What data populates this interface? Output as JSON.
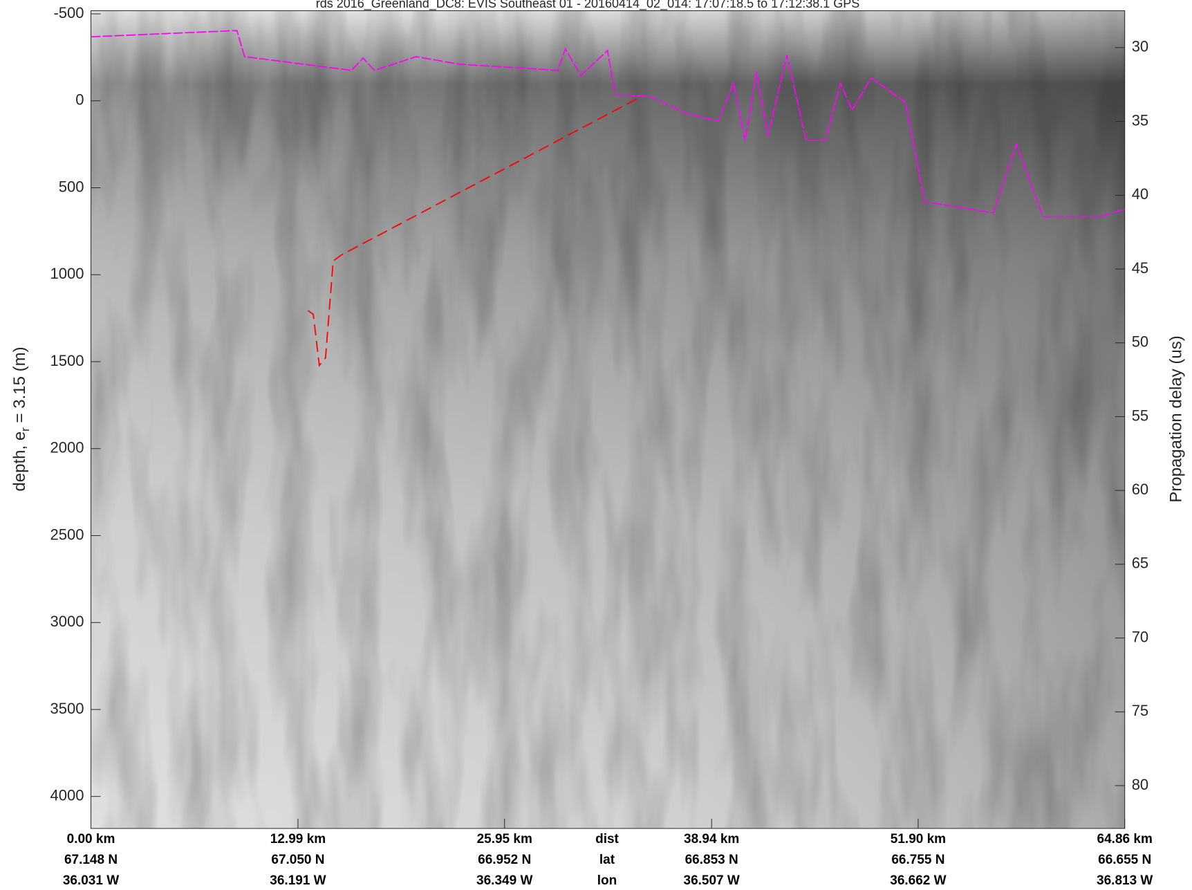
{
  "chart_data": {
    "type": "line",
    "title": "rds 2016_Greenland_DC8: EVIS Southeast 01 - 20160414_02_014: 17:07:18.5 to 17:12:38.1 GPS",
    "y_label": [
      "depth, e",
      "r",
      " = 3.15 (m)"
    ],
    "y2_label": "Propagation delay (us)",
    "xlim": [
      0,
      64.86
    ],
    "ylim": [
      -518,
      4184
    ],
    "y_reversed": true,
    "yticks": [
      -500,
      0,
      500,
      1000,
      1500,
      2000,
      2500,
      3000,
      3500,
      4000
    ],
    "y2lim": [
      27.5,
      82.9
    ],
    "y2ticks": [
      30,
      35,
      40,
      45,
      50,
      55,
      60,
      65,
      70,
      75,
      80
    ],
    "xticks": [
      {
        "value": 0,
        "label": "0.00 km"
      },
      {
        "value": 12.99,
        "label": "12.99 km"
      },
      {
        "value": 25.95,
        "label": "25.95 km"
      },
      {
        "value": 38.94,
        "label": "38.94 km"
      },
      {
        "value": 51.9,
        "label": "51.90 km"
      },
      {
        "value": 64.86,
        "label": "64.86 km"
      }
    ],
    "row_titles": [
      "dist",
      "lat",
      "lon"
    ],
    "lat_labels": [
      "67.148 N",
      "67.050 N",
      "66.952 N",
      "66.853 N",
      "66.755 N",
      "66.655 N"
    ],
    "lon_labels": [
      "36.031 W",
      "36.191 W",
      "36.349 W",
      "36.507 W",
      "36.662 W",
      "36.813 W"
    ],
    "series": [
      {
        "color": "#ff00ff",
        "dash": "14 3",
        "x": [
          0,
          9.16,
          9.64,
          16.35,
          17.07,
          17.79,
          20.42,
          23.06,
          29.29,
          29.77,
          30.73,
          32.41,
          32.89,
          35.04,
          37.44,
          39.36,
          40.32,
          41.04,
          41.76,
          42.47,
          43.67,
          44.87,
          46.07,
          47.03,
          47.75,
          48.95,
          51.1,
          52.3,
          56.62,
          58.06,
          59.73,
          63.33,
          64.86
        ],
        "values": [
          -368,
          -404,
          -254,
          -175,
          -246,
          -175,
          -254,
          -211,
          -175,
          -298,
          -145,
          -289,
          -35,
          -26,
          75,
          118,
          -101,
          228,
          -167,
          206,
          -263,
          228,
          228,
          -101,
          53,
          -132,
          9,
          579,
          645,
          250,
          667,
          667,
          623
        ]
      },
      {
        "color": "#ff0000",
        "dash": "16 8",
        "x": [
          13.62,
          13.95,
          14.33,
          14.72,
          15.2,
          15.72,
          34.56
        ],
        "values": [
          1206,
          1228,
          1522,
          1478,
          921,
          886,
          -26
        ]
      }
    ]
  }
}
